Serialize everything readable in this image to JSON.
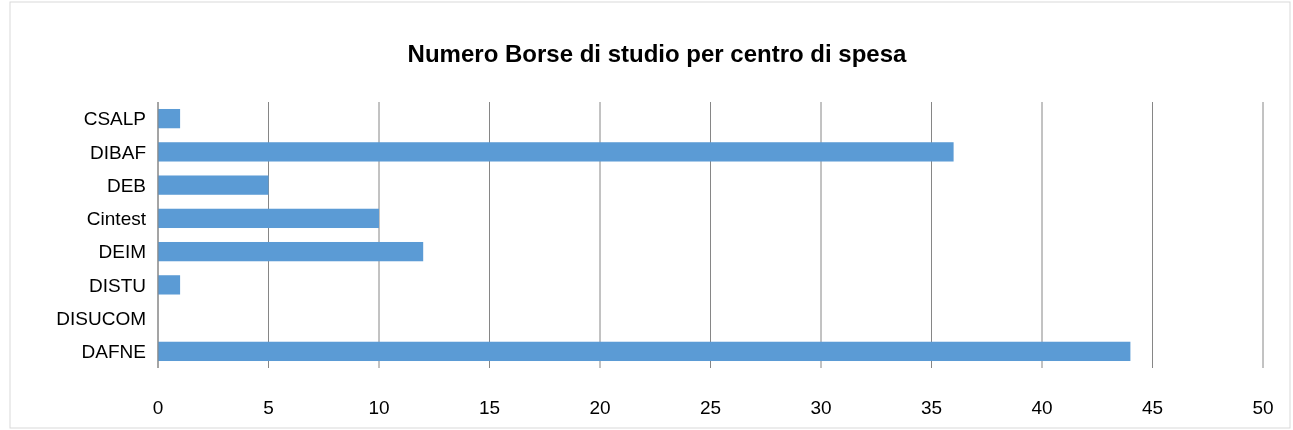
{
  "chart_data": {
    "type": "bar",
    "orientation": "horizontal",
    "title": "Numero Borse di studio per centro di spesa",
    "categories": [
      "CSALP",
      "DIBAF",
      "DEB",
      "Cintest",
      "DEIM",
      "DISTU",
      "DISUCOM",
      "DAFNE"
    ],
    "values": [
      1,
      36,
      5,
      10,
      12,
      1,
      0,
      44
    ],
    "color": "#5b9bd5",
    "xlim": [
      0,
      50
    ],
    "xticks": [
      0,
      5,
      10,
      15,
      20,
      25,
      30,
      35,
      40,
      45,
      50
    ],
    "grid": "x"
  }
}
